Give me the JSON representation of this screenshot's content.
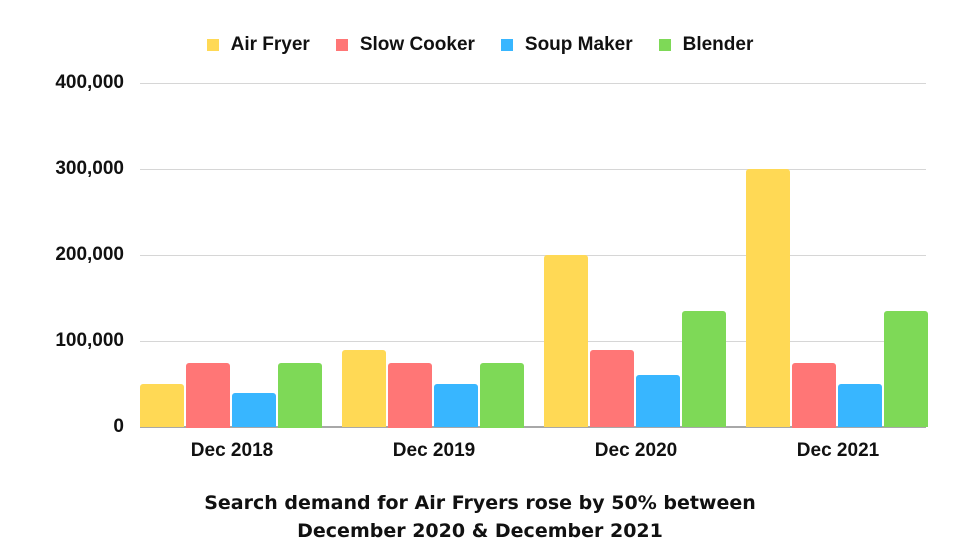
{
  "chart_data": {
    "type": "bar",
    "title": "",
    "xlabel": "",
    "ylabel": "",
    "categories": [
      "Dec 2018",
      "Dec 2019",
      "Dec 2020",
      "Dec 2021"
    ],
    "series": [
      {
        "name": "Air Fryer",
        "color": "#FFD955",
        "values": [
          50000,
          90000,
          200000,
          300000
        ]
      },
      {
        "name": "Slow Cooker",
        "color": "#FF7676",
        "values": [
          75000,
          75000,
          90000,
          75000
        ]
      },
      {
        "name": "Soup Maker",
        "color": "#38B6FF",
        "values": [
          40000,
          50000,
          60000,
          50000
        ]
      },
      {
        "name": "Blender",
        "color": "#7ED957",
        "values": [
          75000,
          75000,
          135000,
          135000
        ]
      }
    ],
    "ylim": [
      0,
      400000
    ],
    "yticks": [
      "0",
      "100,000",
      "200,000",
      "300,000",
      "400,000"
    ],
    "grid": true,
    "legend_position": "top",
    "caption": "Search demand for Air Fryers rose by 50% between December 2020 & December 2021"
  },
  "legend": [
    {
      "label": "Air Fryer",
      "color": "#FFD955"
    },
    {
      "label": "Slow Cooker",
      "color": "#FF7676"
    },
    {
      "label": "Soup Maker",
      "color": "#38B6FF"
    },
    {
      "label": "Blender",
      "color": "#7ED957"
    }
  ],
  "caption": {
    "line1": "Search demand for Air Fryers rose by 50% between",
    "line2": "December 2020 & December 2021"
  }
}
